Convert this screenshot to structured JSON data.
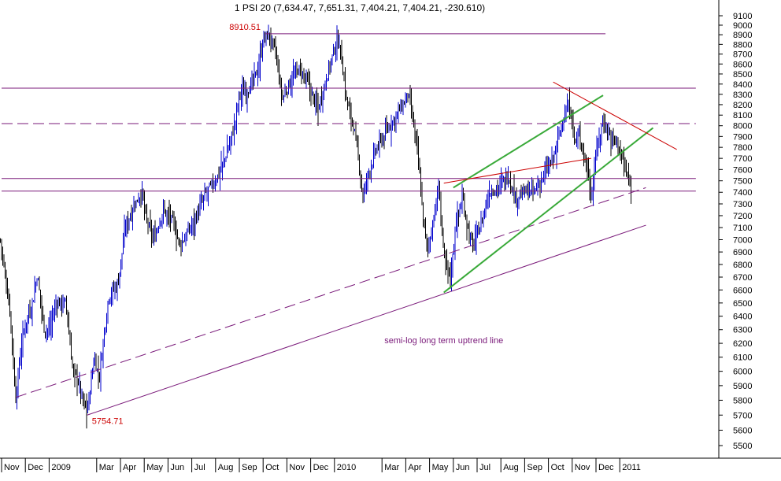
{
  "chart_data": {
    "type": "bar",
    "subtype": "ohlc",
    "title": "1 PSI 20 (7,634.47, 7,651.31, 7,404.21, 7,404.21, -230.610)",
    "xlabel": "",
    "ylabel": "",
    "y_axis_side": "right",
    "log_scale": true,
    "ylim": [
      5400,
      9200
    ],
    "y_ticks": [
      5500,
      5600,
      5700,
      5800,
      5900,
      6000,
      6100,
      6200,
      6300,
      6400,
      6500,
      6600,
      6700,
      6800,
      6900,
      7000,
      7100,
      7200,
      7300,
      7400,
      7500,
      7600,
      7700,
      7800,
      7900,
      8000,
      8100,
      8200,
      8300,
      8400,
      8500,
      8600,
      8700,
      8800,
      8900,
      9000,
      9100
    ],
    "y_tick_labels": [
      "5500",
      "5600",
      "5700",
      "5800",
      "5900",
      "6000",
      "6100",
      "6200",
      "6300",
      "6400",
      "6500",
      "6600",
      "6700",
      "6800",
      "6900",
      "7000",
      "7100",
      "7200",
      "7300",
      "7400",
      "7500",
      "7600",
      "7700",
      "7800",
      "7900",
      "8000",
      "8100",
      "8200",
      "8300",
      "8400",
      "8500",
      "8600",
      "8700",
      "8800",
      "8900",
      "9000",
      "9100"
    ],
    "x_range_months": [
      0,
      29
    ],
    "x_ticks": [
      {
        "label": "Nov",
        "x": 0
      },
      {
        "label": "Dec",
        "x": 1
      },
      {
        "label": "2009",
        "x": 2
      },
      {
        "label": "Mar",
        "x": 4
      },
      {
        "label": "Apr",
        "x": 5
      },
      {
        "label": "May",
        "x": 6
      },
      {
        "label": "Jun",
        "x": 7
      },
      {
        "label": "Jul",
        "x": 8
      },
      {
        "label": "Aug",
        "x": 9
      },
      {
        "label": "Sep",
        "x": 10
      },
      {
        "label": "Oct",
        "x": 11
      },
      {
        "label": "Nov",
        "x": 12
      },
      {
        "label": "Dec",
        "x": 13
      },
      {
        "label": "2010",
        "x": 14
      },
      {
        "label": "Mar",
        "x": 16
      },
      {
        "label": "Apr",
        "x": 17
      },
      {
        "label": "May",
        "x": 18
      },
      {
        "label": "Jun",
        "x": 19
      },
      {
        "label": "Jul",
        "x": 20
      },
      {
        "label": "Aug",
        "x": 21
      },
      {
        "label": "Sep",
        "x": 22
      },
      {
        "label": "Oct",
        "x": 23
      },
      {
        "label": "Nov",
        "x": 24
      },
      {
        "label": "Dec",
        "x": 25
      },
      {
        "label": "2011",
        "x": 26
      }
    ],
    "price_path": [
      [
        -0.05,
        7000
      ],
      [
        0.15,
        6700
      ],
      [
        0.35,
        6450
      ],
      [
        0.6,
        5800
      ],
      [
        0.8,
        6150
      ],
      [
        1.0,
        6350
      ],
      [
        1.3,
        6500
      ],
      [
        1.5,
        6720
      ],
      [
        1.8,
        6300
      ],
      [
        2.0,
        6300
      ],
      [
        2.3,
        6500
      ],
      [
        2.7,
        6500
      ],
      [
        3.0,
        6000
      ],
      [
        3.2,
        5950
      ],
      [
        3.4,
        5800
      ],
      [
        3.6,
        5720
      ],
      [
        3.9,
        6100
      ],
      [
        4.1,
        5950
      ],
      [
        4.5,
        6550
      ],
      [
        4.9,
        6650
      ],
      [
        5.2,
        7100
      ],
      [
        5.6,
        7300
      ],
      [
        5.9,
        7400
      ],
      [
        6.1,
        7150
      ],
      [
        6.4,
        7000
      ],
      [
        6.8,
        7250
      ],
      [
        7.2,
        7150
      ],
      [
        7.5,
        6950
      ],
      [
        7.8,
        7050
      ],
      [
        8.2,
        7200
      ],
      [
        8.6,
        7400
      ],
      [
        9.0,
        7500
      ],
      [
        9.4,
        7700
      ],
      [
        9.8,
        8000
      ],
      [
        10.0,
        8300
      ],
      [
        10.4,
        8350
      ],
      [
        10.8,
        8550
      ],
      [
        11.0,
        8850
      ],
      [
        11.2,
        8900
      ],
      [
        11.5,
        8750
      ],
      [
        11.8,
        8250
      ],
      [
        12.2,
        8450
      ],
      [
        12.5,
        8550
      ],
      [
        12.9,
        8400
      ],
      [
        13.3,
        8150
      ],
      [
        13.7,
        8500
      ],
      [
        14.0,
        8750
      ],
      [
        14.2,
        8850
      ],
      [
        14.5,
        8250
      ],
      [
        14.8,
        8000
      ],
      [
        15.0,
        7700
      ],
      [
        15.2,
        7350
      ],
      [
        15.4,
        7550
      ],
      [
        15.8,
        7800
      ],
      [
        16.2,
        7950
      ],
      [
        16.6,
        8100
      ],
      [
        16.9,
        8200
      ],
      [
        17.1,
        8300
      ],
      [
        17.3,
        8050
      ],
      [
        17.5,
        7750
      ],
      [
        17.7,
        7250
      ],
      [
        17.9,
        6900
      ],
      [
        18.1,
        7100
      ],
      [
        18.4,
        7450
      ],
      [
        18.6,
        6850
      ],
      [
        18.9,
        6700
      ],
      [
        19.1,
        7150
      ],
      [
        19.4,
        7350
      ],
      [
        19.6,
        7100
      ],
      [
        19.8,
        6950
      ],
      [
        20.2,
        7150
      ],
      [
        20.5,
        7400
      ],
      [
        20.9,
        7450
      ],
      [
        21.3,
        7550
      ],
      [
        21.6,
        7350
      ],
      [
        22.0,
        7400
      ],
      [
        22.4,
        7400
      ],
      [
        22.8,
        7550
      ],
      [
        23.2,
        7700
      ],
      [
        23.6,
        8050
      ],
      [
        23.9,
        8200
      ],
      [
        24.1,
        7850
      ],
      [
        24.3,
        7900
      ],
      [
        24.6,
        7650
      ],
      [
        24.8,
        7350
      ],
      [
        25.0,
        7750
      ],
      [
        25.3,
        8050
      ],
      [
        25.6,
        7900
      ],
      [
        25.9,
        7850
      ],
      [
        26.1,
        7700
      ],
      [
        26.3,
        7550
      ],
      [
        26.5,
        7400
      ]
    ],
    "lines": [
      {
        "name": "h-8910",
        "color": "#7a1a7a",
        "style": "solid",
        "width": 1,
        "x1": 11.1,
        "y1": 8910,
        "x2": 25.4,
        "y2": 8910
      },
      {
        "name": "h-8360",
        "color": "#7a1a7a",
        "style": "solid",
        "width": 1,
        "x1": 0,
        "y1": 8360,
        "x2": 29.2,
        "y2": 8360
      },
      {
        "name": "h-8020",
        "color": "#7a1a7a",
        "style": "dashed",
        "width": 1,
        "x1": 0,
        "y1": 8020,
        "x2": 29.2,
        "y2": 8020
      },
      {
        "name": "h-7520",
        "color": "#7a1a7a",
        "style": "solid",
        "width": 1,
        "x1": 0,
        "y1": 7520,
        "x2": 29.2,
        "y2": 7520
      },
      {
        "name": "h-7410",
        "color": "#7a1a7a",
        "style": "solid",
        "width": 1,
        "x1": 0,
        "y1": 7410,
        "x2": 29.2,
        "y2": 7410
      },
      {
        "name": "long-term-uptrend",
        "color": "#7a1a7a",
        "style": "solid",
        "width": 1,
        "x1": 3.6,
        "y1": 5700,
        "x2": 27.1,
        "y2": 7120
      },
      {
        "name": "dashed-uptrend",
        "color": "#7a1a7a",
        "style": "dashed",
        "width": 1,
        "x1": 0.6,
        "y1": 5820,
        "x2": 27.1,
        "y2": 7440
      },
      {
        "name": "channel-upper",
        "color": "#3aaa3a",
        "style": "solid",
        "width": 2,
        "x1": 19.0,
        "y1": 7440,
        "x2": 25.3,
        "y2": 8290
      },
      {
        "name": "channel-lower",
        "color": "#3aaa3a",
        "style": "solid",
        "width": 2,
        "x1": 18.6,
        "y1": 6580,
        "x2": 27.4,
        "y2": 7980
      },
      {
        "name": "red-rising",
        "color": "#cc0000",
        "style": "solid",
        "width": 1,
        "x1": 18.6,
        "y1": 7480,
        "x2": 24.8,
        "y2": 7700
      },
      {
        "name": "red-downtrend",
        "color": "#cc0000",
        "style": "solid",
        "width": 1,
        "x1": 23.2,
        "y1": 8420,
        "x2": 28.4,
        "y2": 7780
      }
    ],
    "annotations": [
      {
        "text": "8910.51",
        "x": 11.1,
        "y": 8910
      },
      {
        "text": "5754.71",
        "x": 3.6,
        "y": 5700
      },
      {
        "text": "semi-log long term uptrend line",
        "x": 16.1,
        "y": 6200
      }
    ]
  }
}
